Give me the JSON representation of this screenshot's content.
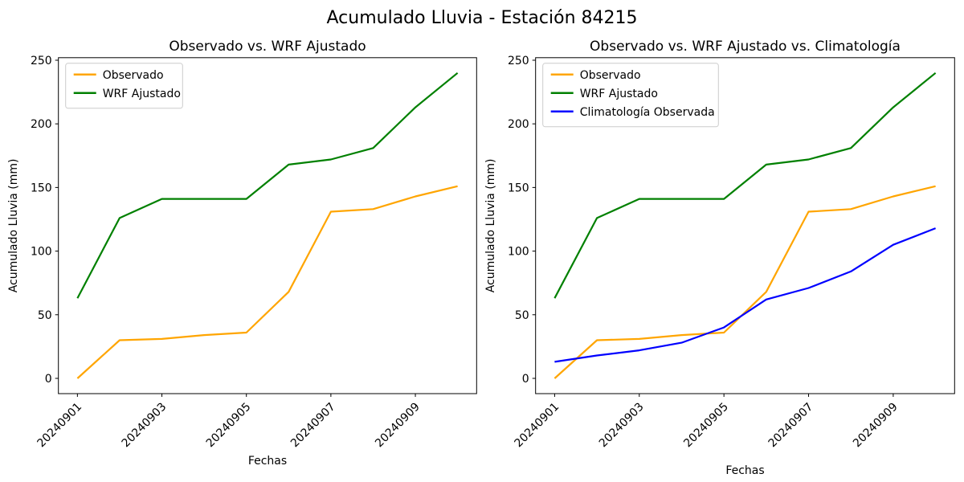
{
  "figure": {
    "suptitle": "Acumulado Lluvia - Estación 84215"
  },
  "chart_data": [
    {
      "type": "line",
      "title": "Observado vs. WRF Ajustado",
      "xlabel": "Fechas",
      "ylabel": "Acumulado Lluvia (mm)",
      "x": [
        "20240901",
        "20240902",
        "20240903",
        "20240904",
        "20240905",
        "20240906",
        "20240907",
        "20240908",
        "20240909",
        "20240910"
      ],
      "x_tick_days": [
        1,
        3,
        5,
        7,
        9
      ],
      "x_tick_labels": [
        "20240901",
        "20240903",
        "20240905",
        "20240907",
        "20240909"
      ],
      "x_tick_rotation_deg": 45,
      "y_ticks": [
        0,
        50,
        100,
        150,
        200,
        250
      ],
      "xlim": [
        0.55,
        10.45
      ],
      "ylim": [
        -12,
        252
      ],
      "grid": false,
      "legend_position": "upper-left",
      "series": [
        {
          "name": "Observado",
          "color": "#FFA500",
          "values": [
            0,
            30,
            31,
            34,
            36,
            68,
            131,
            133,
            143,
            151
          ]
        },
        {
          "name": "WRF Ajustado",
          "color": "#008000",
          "values": [
            63,
            126,
            141,
            141,
            141,
            168,
            172,
            181,
            213,
            240
          ]
        }
      ]
    },
    {
      "type": "line",
      "title": "Observado vs. WRF Ajustado vs. Climatología",
      "xlabel": "Fechas",
      "ylabel": "Acumulado Lluvia (mm)",
      "x": [
        "20240901",
        "20240902",
        "20240903",
        "20240904",
        "20240905",
        "20240906",
        "20240907",
        "20240908",
        "20240909",
        "20240910"
      ],
      "x_tick_days": [
        1,
        3,
        5,
        7,
        9
      ],
      "x_tick_labels": [
        "20240901",
        "20240903",
        "20240905",
        "20240907",
        "20240909"
      ],
      "x_tick_rotation_deg": 45,
      "y_ticks": [
        0,
        50,
        100,
        150,
        200,
        250
      ],
      "xlim": [
        0.55,
        10.45
      ],
      "ylim": [
        -12,
        252
      ],
      "grid": false,
      "legend_position": "upper-left",
      "series": [
        {
          "name": "Observado",
          "color": "#FFA500",
          "values": [
            0,
            30,
            31,
            34,
            36,
            68,
            131,
            133,
            143,
            151
          ]
        },
        {
          "name": "WRF Ajustado",
          "color": "#008000",
          "values": [
            63,
            126,
            141,
            141,
            141,
            168,
            172,
            181,
            213,
            240
          ]
        },
        {
          "name": "Climatología Observada",
          "color": "#0000FF",
          "values": [
            13,
            18,
            22,
            28,
            40,
            62,
            71,
            84,
            105,
            118
          ]
        }
      ]
    }
  ],
  "style": {
    "axis_color": "#000000",
    "background": "#ffffff",
    "legend_border": "#cccccc"
  }
}
